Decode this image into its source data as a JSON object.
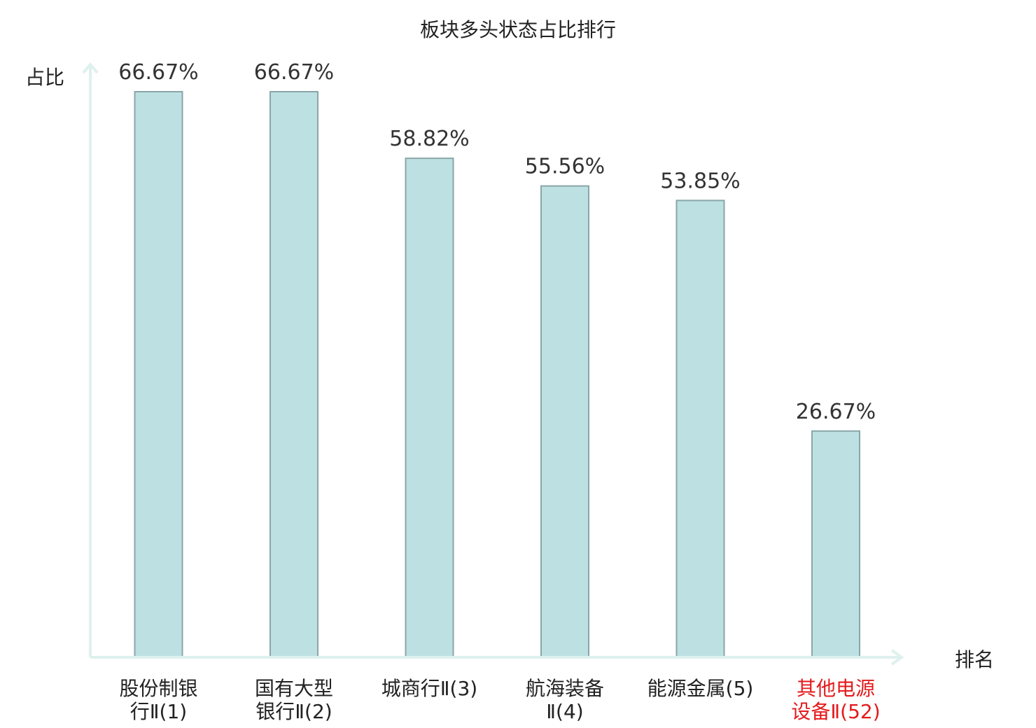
{
  "chart_data": {
    "type": "bar",
    "title": "板块多头状态占比排行",
    "xlabel": "排名",
    "ylabel": "占比",
    "categories": [
      [
        "股份制银",
        "行Ⅱ(1)"
      ],
      [
        "国有大型",
        "银行Ⅱ(2)"
      ],
      [
        "城商行Ⅱ(3)"
      ],
      [
        "航海装备",
        "Ⅱ(4)"
      ],
      [
        "能源金属(5)"
      ],
      [
        "其他电源",
        "设备Ⅱ(52)"
      ]
    ],
    "values": [
      66.67,
      66.67,
      58.82,
      55.56,
      53.85,
      26.67
    ],
    "value_labels": [
      "66.67%",
      "66.67%",
      "58.82%",
      "55.56%",
      "53.85%",
      "26.67%"
    ],
    "highlight_index": 5,
    "ylim": [
      0,
      66.67
    ],
    "grid": false,
    "colors": {
      "bar_fill": "#bde0e3",
      "bar_stroke": "#8aa6a8",
      "axis": "#dff1ee",
      "highlight_text": "#e41a1c"
    }
  }
}
